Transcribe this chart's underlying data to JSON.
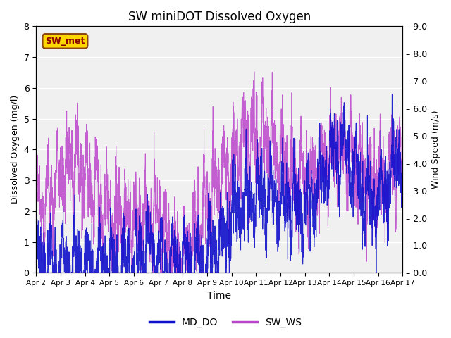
{
  "title": "SW miniDOT Dissolved Oxygen",
  "xlabel": "Time",
  "ylabel_left": "Dissolved Oxygen (mg/l)",
  "ylabel_right": "Wind Speed (m/s)",
  "ylim_left": [
    0.0,
    8.0
  ],
  "ylim_right": [
    0.0,
    9.0
  ],
  "yticks_left": [
    0.0,
    1.0,
    2.0,
    3.0,
    4.0,
    5.0,
    6.0,
    7.0,
    8.0
  ],
  "yticks_right": [
    0.0,
    1.0,
    2.0,
    3.0,
    4.0,
    5.0,
    6.0,
    7.0,
    8.0,
    9.0
  ],
  "color_do": "#1010CC",
  "color_ws": "#BB44CC",
  "legend_label_do": "MD_DO",
  "legend_label_ws": "SW_WS",
  "inset_label": "SW_met",
  "inset_text_color": "#8B0000",
  "inset_bg_color": "#FFD700",
  "inset_edge_color": "#8B4513",
  "background_color": "#DCDCDC",
  "plot_bg_color": "#F0F0F0",
  "n_points": 3000,
  "seed": 7
}
